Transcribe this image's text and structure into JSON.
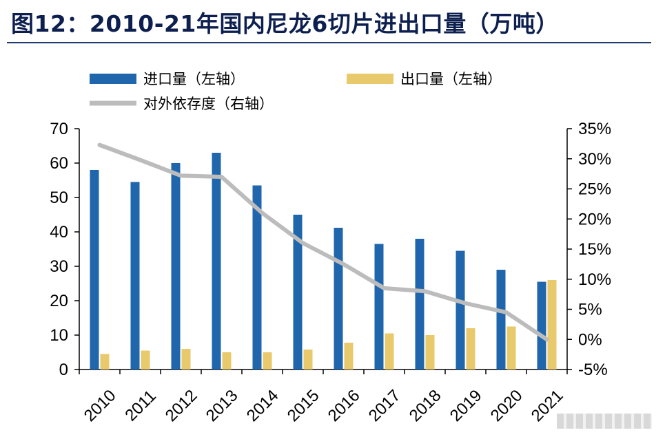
{
  "title": "图12：2010-21年国内尼龙6切片进出口量（万吨）",
  "chart_data": {
    "type": "bar",
    "categories": [
      "2010",
      "2011",
      "2012",
      "2013",
      "2014",
      "2015",
      "2016",
      "2017",
      "2018",
      "2019",
      "2020",
      "2021"
    ],
    "series": [
      {
        "name": "进口量（左轴）",
        "type": "bar",
        "axis": "left",
        "color": "#1f66ad",
        "values": [
          58,
          54.5,
          60,
          63,
          53.5,
          45,
          41.2,
          36.5,
          38,
          34.5,
          29,
          25.5
        ]
      },
      {
        "name": "出口量（左轴）",
        "type": "bar",
        "axis": "left",
        "color": "#e8c96b",
        "values": [
          4.5,
          5.5,
          6,
          5,
          5,
          5.8,
          7.8,
          10.5,
          10,
          12,
          12.5,
          26
        ]
      },
      {
        "name": "对外依存度（右轴）",
        "type": "line",
        "axis": "right",
        "color": "#bcbcbc",
        "values": [
          32.3,
          29.8,
          27.2,
          27,
          21,
          16,
          12.5,
          8.5,
          8,
          6,
          4.5,
          0
        ]
      }
    ],
    "y_left": {
      "min": 0,
      "max": 70,
      "step": 10,
      "ticks": [
        "0",
        "10",
        "20",
        "30",
        "40",
        "50",
        "60",
        "70"
      ]
    },
    "y_right": {
      "min": -5,
      "max": 35,
      "step": 5,
      "ticks": [
        "-5%",
        "0%",
        "5%",
        "10%",
        "15%",
        "20%",
        "25%",
        "30%",
        "35%"
      ]
    },
    "legend_position": "top",
    "grid": false
  }
}
